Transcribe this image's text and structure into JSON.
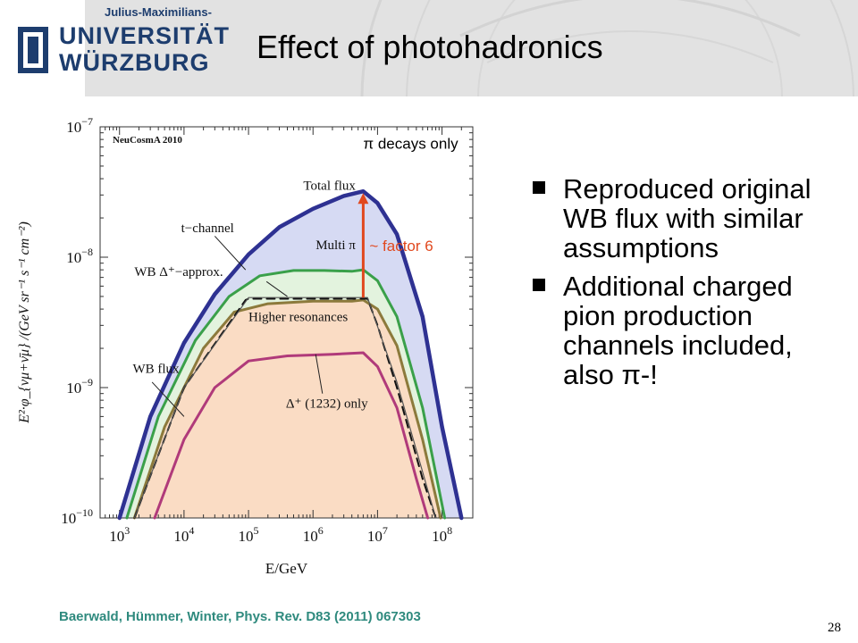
{
  "header": {
    "logo_line_small": "Julius-Maximilians-",
    "logo_line1": "UNIVERSITÄT",
    "logo_line2": "WÜRZBURG",
    "title": "Effect of photohadronics"
  },
  "bullets": [
    {
      "text": "Reproduced original WB flux with similar assumptions"
    },
    {
      "text": "Additional charged pion production channels included, also π-!"
    }
  ],
  "citation": "Baerwald, Hümmer, Winter, Phys. Rev. D83 (2011) 067303",
  "page_number": "28",
  "chart_data": {
    "type": "line",
    "title": "",
    "corner_label": "NeuCosmA 2010",
    "xlabel": "E/GeV",
    "ylabel": "E²·φ_{νμ+ν̄μ} /(GeV sr⁻¹ s⁻¹ cm⁻²)",
    "x_scale": "log",
    "y_scale": "log",
    "xlim": [
      500,
      300000000
    ],
    "ylim": [
      1e-10,
      1e-07
    ],
    "x_ticks": [
      {
        "value": 1000,
        "base": "10",
        "exp": "3"
      },
      {
        "value": 10000,
        "base": "10",
        "exp": "4"
      },
      {
        "value": 100000,
        "base": "10",
        "exp": "5"
      },
      {
        "value": 1000000,
        "base": "10",
        "exp": "6"
      },
      {
        "value": 10000000,
        "base": "10",
        "exp": "7"
      },
      {
        "value": 100000000,
        "base": "10",
        "exp": "8"
      }
    ],
    "y_ticks": [
      {
        "value": 1e-10,
        "base": "10",
        "exp": "−10"
      },
      {
        "value": 1e-09,
        "base": "10",
        "exp": "−9"
      },
      {
        "value": 1e-08,
        "base": "10",
        "exp": "−8"
      },
      {
        "value": 1e-07,
        "base": "10",
        "exp": "−7"
      }
    ],
    "series": [
      {
        "name": "Total flux",
        "color": "#2e3192",
        "width": 4.5,
        "dash": "",
        "fill": "#d6daf3",
        "points": [
          [
            1000,
            1e-10
          ],
          [
            3000,
            6e-10
          ],
          [
            10000,
            2.2e-09
          ],
          [
            30000,
            5.2e-09
          ],
          [
            100000,
            1.05e-08
          ],
          [
            300000,
            1.7e-08
          ],
          [
            1000000,
            2.35e-08
          ],
          [
            3000000,
            2.95e-08
          ],
          [
            6000000,
            3.2e-08
          ],
          [
            10000000,
            2.6e-08
          ],
          [
            20000000,
            1.5e-08
          ],
          [
            50000000,
            3.5e-09
          ],
          [
            100000000,
            5e-10
          ],
          [
            200000000,
            1e-10
          ]
        ]
      },
      {
        "name": "t−channel",
        "color": "#3aa04a",
        "width": 3,
        "dash": "",
        "fill": "#e3f3de",
        "points": [
          [
            1300,
            1e-10
          ],
          [
            4000,
            6e-10
          ],
          [
            15000,
            2.3e-09
          ],
          [
            50000,
            5e-09
          ],
          [
            150000,
            7.2e-09
          ],
          [
            500000,
            7.9e-09
          ],
          [
            1500000,
            7.9e-09
          ],
          [
            4000000,
            7.8e-09
          ],
          [
            6000000,
            8e-09
          ],
          [
            10000000,
            6.6e-09
          ],
          [
            20000000,
            3.5e-09
          ],
          [
            50000000,
            7e-10
          ],
          [
            110000000,
            1e-10
          ]
        ]
      },
      {
        "name": "Multi π",
        "color": "#8c7a3c",
        "width": 3,
        "dash": "",
        "fill": "#fadcc4",
        "points": [
          [
            1700,
            1e-10
          ],
          [
            5000,
            5e-10
          ],
          [
            20000,
            2e-09
          ],
          [
            60000,
            3.8e-09
          ],
          [
            200000,
            4.4e-09
          ],
          [
            1000000,
            4.6e-09
          ],
          [
            4000000,
            4.6e-09
          ],
          [
            6000000,
            4.7e-09
          ],
          [
            10000000,
            4e-09
          ],
          [
            20000000,
            2.1e-09
          ],
          [
            50000000,
            4e-10
          ],
          [
            95000000,
            1e-10
          ]
        ]
      },
      {
        "name": "Δ⁺ (1232) only",
        "color": "#b03a7a",
        "width": 3,
        "dash": "",
        "fill": "",
        "points": [
          [
            3500,
            1e-10
          ],
          [
            10000,
            4e-10
          ],
          [
            30000,
            1e-09
          ],
          [
            100000,
            1.6e-09
          ],
          [
            400000,
            1.75e-09
          ],
          [
            2000000,
            1.8e-09
          ],
          [
            6000000,
            1.85e-09
          ],
          [
            10000000,
            1.45e-09
          ],
          [
            20000000,
            7e-10
          ],
          [
            40000000,
            2e-10
          ],
          [
            60000000,
            1e-10
          ]
        ]
      },
      {
        "name": "WB Δ⁺−approx.",
        "color": "#111111",
        "width": 2,
        "dash": "9,6",
        "fill": "",
        "points": [
          [
            1700,
            1e-10
          ],
          [
            10000,
            1e-09
          ],
          [
            90000,
            4.7e-09
          ],
          [
            100000,
            4.8e-09
          ],
          [
            7000000,
            4.8e-09
          ],
          [
            10000000,
            3e-09
          ],
          [
            20000000,
            1e-09
          ],
          [
            50000000,
            2e-10
          ],
          [
            80000000,
            1e-10
          ]
        ]
      },
      {
        "name": "WB flux",
        "color": "#555555",
        "width": 1.2,
        "dash": "",
        "fill": "",
        "points": [
          [
            1700,
            1e-10
          ],
          [
            10000,
            1e-09
          ],
          [
            100000,
            4.9e-09
          ],
          [
            7000000,
            4.9e-09
          ],
          [
            20000000,
            1.1e-09
          ],
          [
            80000000,
            1e-10
          ]
        ]
      }
    ],
    "annotations": [
      {
        "text": "Total flux",
        "x": 1800000,
        "y": 3.3e-08,
        "anchor": "middle",
        "size": 15,
        "serif": true
      },
      {
        "text": "t−channel",
        "x": 9000,
        "y": 1.55e-08,
        "anchor": "start",
        "size": 15,
        "serif": true
      },
      {
        "text": "Multi π",
        "x": 1100000,
        "y": 1.15e-08,
        "anchor": "start",
        "size": 15,
        "serif": true
      },
      {
        "text": "WB Δ⁺−approx.",
        "x": 1700,
        "y": 7.2e-09,
        "anchor": "start",
        "size": 15,
        "serif": true
      },
      {
        "text": "Higher resonances",
        "x": 100000,
        "y": 3.25e-09,
        "anchor": "start",
        "size": 15,
        "serif": true
      },
      {
        "text": "WB flux",
        "x": 1600,
        "y": 1.3e-09,
        "anchor": "start",
        "size": 15,
        "serif": true
      },
      {
        "text": "Δ⁺ (1232) only",
        "x": 380000,
        "y": 7e-10,
        "anchor": "start",
        "size": 15,
        "serif": true
      },
      {
        "text": "π decays only",
        "x": 6000000,
        "y": 6.8e-08,
        "anchor": "start",
        "size": 17,
        "serif": false,
        "color": "#000000"
      },
      {
        "text": "~ factor 6",
        "x": 7500000,
        "y": 1.12e-08,
        "anchor": "start",
        "size": 17,
        "serif": false,
        "color": "#e1481e"
      }
    ],
    "arrow": {
      "x": 6000000,
      "y_from": 4.9e-09,
      "y_to": 3.1e-08,
      "color": "#e1481e"
    },
    "grid": false
  }
}
